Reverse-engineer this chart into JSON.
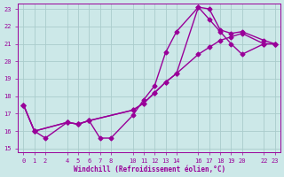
{
  "xlabel": "Windchill (Refroidissement éolien,°C)",
  "bg_color": "#cce8e8",
  "grid_color": "#aacccc",
  "line_color": "#990099",
  "marker": "D",
  "markersize": 2.5,
  "linewidth": 1.0,
  "xlim": [
    -0.5,
    23.5
  ],
  "ylim": [
    14.8,
    23.3
  ],
  "xticks": [
    0,
    1,
    2,
    4,
    5,
    6,
    7,
    8,
    10,
    11,
    12,
    13,
    14,
    16,
    17,
    18,
    19,
    20,
    22,
    23
  ],
  "yticks": [
    15,
    16,
    17,
    18,
    19,
    20,
    21,
    22,
    23
  ],
  "series1_x": [
    0,
    1,
    2,
    4,
    5,
    6,
    7,
    8,
    10,
    11,
    12,
    13,
    14,
    16,
    17,
    18,
    19,
    20,
    22,
    23
  ],
  "series1_y": [
    17.5,
    16.0,
    15.6,
    16.5,
    16.4,
    16.6,
    15.6,
    15.6,
    16.9,
    17.8,
    18.6,
    20.5,
    21.7,
    23.1,
    23.0,
    21.8,
    21.6,
    21.7,
    21.2,
    21.0
  ],
  "series2_x": [
    0,
    1,
    4,
    5,
    6,
    10,
    11,
    12,
    13,
    14,
    16,
    17,
    18,
    19,
    20,
    22,
    23
  ],
  "series2_y": [
    17.5,
    16.0,
    16.5,
    16.4,
    16.6,
    17.2,
    17.6,
    18.2,
    18.8,
    19.3,
    23.1,
    22.4,
    21.7,
    21.0,
    20.4,
    21.0,
    21.0
  ],
  "series3_x": [
    0,
    1,
    4,
    5,
    6,
    10,
    11,
    12,
    13,
    14,
    16,
    17,
    18,
    19,
    20,
    22,
    23
  ],
  "series3_y": [
    17.5,
    16.0,
    16.5,
    16.4,
    16.6,
    17.2,
    17.6,
    18.2,
    18.8,
    19.3,
    20.4,
    20.8,
    21.2,
    21.4,
    21.6,
    21.0,
    21.0
  ]
}
